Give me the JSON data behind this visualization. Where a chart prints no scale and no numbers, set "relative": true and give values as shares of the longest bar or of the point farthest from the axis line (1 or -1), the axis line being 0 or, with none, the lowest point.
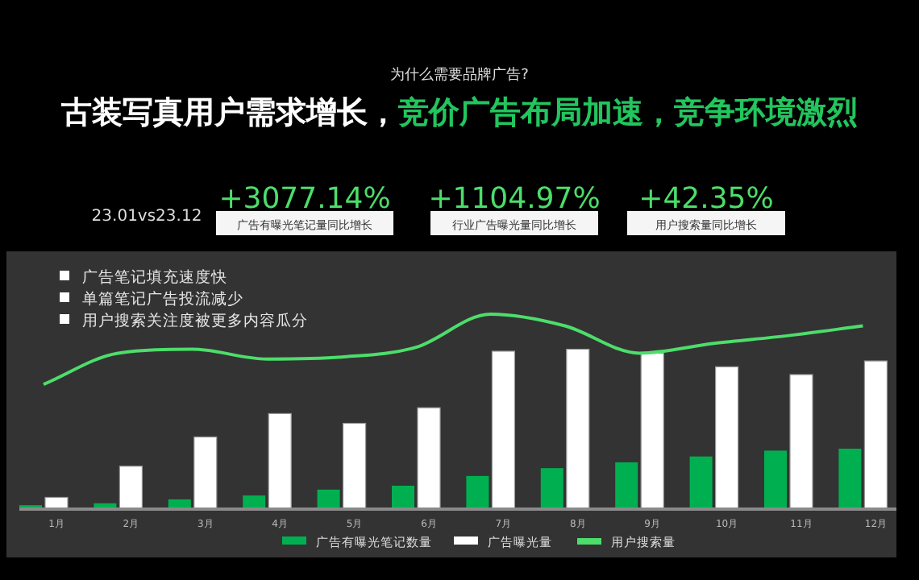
{
  "chart_data": {
    "type": "bar",
    "relative": true,
    "title": "古装写真用户需求增长，竞价广告布局加速，竞争环境激烈",
    "subtitle": "为什么需要品牌广告?",
    "categories": [
      "1月",
      "2月",
      "3月",
      "4月",
      "5月",
      "6月",
      "7月",
      "8月",
      "9月",
      "10月",
      "11月",
      "12月"
    ],
    "series": [
      {
        "name": "广告有曝光笔记数量",
        "color": "#00b050",
        "values": [
          0.02,
          0.03,
          0.05,
          0.07,
          0.1,
          0.12,
          0.17,
          0.21,
          0.24,
          0.27,
          0.3,
          0.31
        ]
      },
      {
        "name": "广告曝光量",
        "color": "#ffffff",
        "values": [
          0.06,
          0.22,
          0.37,
          0.49,
          0.44,
          0.52,
          0.81,
          0.82,
          0.8,
          0.73,
          0.69,
          0.76
        ]
      },
      {
        "name": "用户搜索量",
        "type": "line",
        "color": "#4ddd6b",
        "values": [
          0.64,
          0.8,
          0.82,
          0.77,
          0.78,
          0.83,
          1,
          0.94,
          0.8,
          0.85,
          0.89,
          0.94
        ]
      }
    ],
    "legend": "bottom",
    "annotations": [
      "23.01vs23.12",
      "+3077.14%",
      "广告有曝光笔记量同比增长",
      "+1104.97%",
      "行业广告曝光量同比增长",
      "+42.35%",
      "用户搜索量同比增长",
      "广告笔记填充速度快",
      "单篇笔记广告投流减少",
      "用户搜索关注度被更多内容瓜分"
    ]
  }
}
